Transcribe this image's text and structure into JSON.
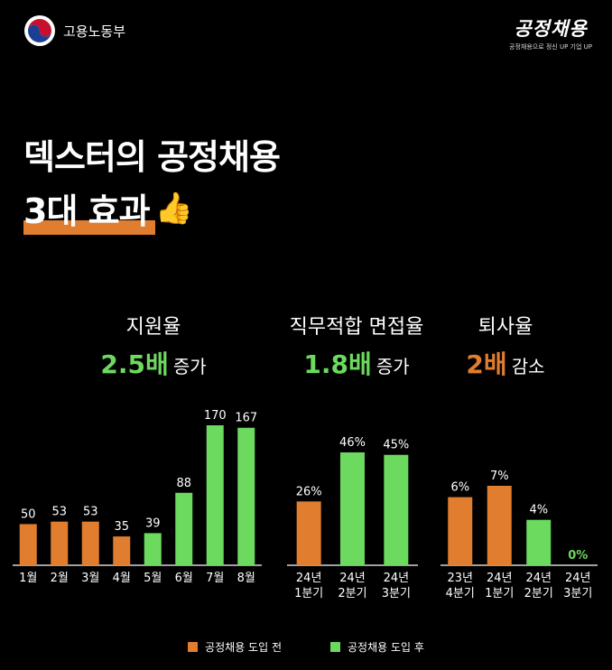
{
  "header": {
    "ministry_name": "고용노동부",
    "brand_title": "공정채용",
    "brand_tagline": "공정채용으로 정신 UP 기업 UP"
  },
  "headline": {
    "line1": "덱스터의 공정채용",
    "line2": "3대 효과",
    "emoji": "👍"
  },
  "stats": [
    {
      "label": "지원율",
      "value": "2.5배",
      "change": "증가",
      "color": "#6cd95f"
    },
    {
      "label": "직무적합 면접율",
      "value": "1.8배",
      "change": "증가",
      "color": "#6cd95f"
    },
    {
      "label": "퇴사율",
      "value": "2배",
      "change": "감소",
      "color": "#e07d2f"
    }
  ],
  "colors": {
    "before": "#e07d2f",
    "after": "#6cd95f",
    "axis": "#ffffff"
  },
  "chart_data": [
    {
      "type": "bar",
      "categories": [
        "1월",
        "2월",
        "3월",
        "4월",
        "5월",
        "6월",
        "7월",
        "8월"
      ],
      "values": [
        50,
        53,
        53,
        35,
        39,
        88,
        170,
        167
      ],
      "value_labels": [
        "50",
        "53",
        "53",
        "35",
        "39",
        "88",
        "170",
        "167"
      ],
      "phase": [
        "before",
        "before",
        "before",
        "before",
        "after",
        "after",
        "after",
        "after"
      ],
      "ylim": [
        0,
        170
      ]
    },
    {
      "type": "bar",
      "categories": [
        [
          "24년",
          "1분기"
        ],
        [
          "24년",
          "2분기"
        ],
        [
          "24년",
          "3분기"
        ]
      ],
      "values": [
        26,
        46,
        45
      ],
      "value_labels": [
        "26%",
        "46%",
        "45%"
      ],
      "phase": [
        "before",
        "after",
        "after"
      ],
      "ylim": [
        0,
        46
      ]
    },
    {
      "type": "bar",
      "categories": [
        [
          "23년",
          "4분기"
        ],
        [
          "24년",
          "1분기"
        ],
        [
          "24년",
          "2분기"
        ],
        [
          "24년",
          "3분기"
        ]
      ],
      "values": [
        6,
        7,
        4,
        0
      ],
      "value_labels": [
        "6%",
        "7%",
        "4%",
        "0%"
      ],
      "phase": [
        "before",
        "before",
        "after",
        "after"
      ],
      "ylim": [
        0,
        7
      ]
    }
  ],
  "legend": [
    {
      "label": "공정채용 도입 전",
      "phase": "before"
    },
    {
      "label": "공정채용 도입 후",
      "phase": "after"
    }
  ]
}
